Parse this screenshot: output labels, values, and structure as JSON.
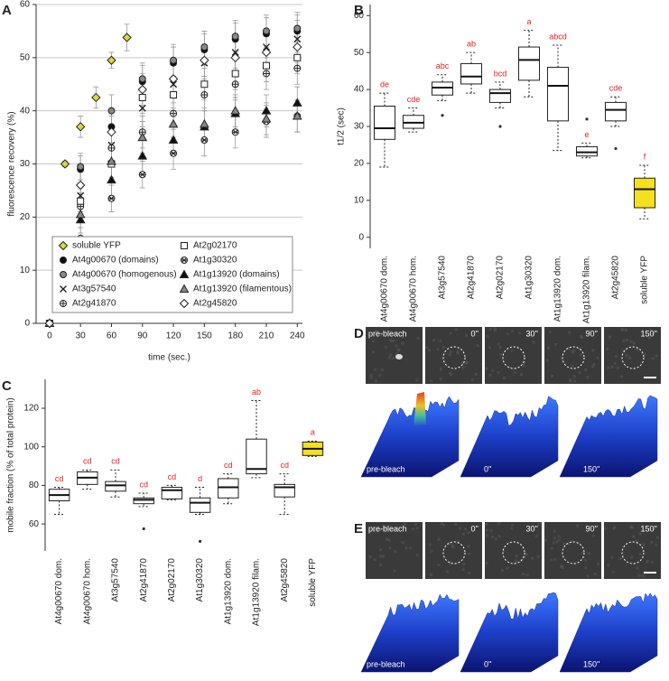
{
  "chart_data": [
    {
      "type": "scatter",
      "panel": "A",
      "xlabel": "time (sec.)",
      "ylabel": "fluorescence recovery (%)",
      "xlim": [
        -13,
        245
      ],
      "ylim": [
        0,
        60
      ],
      "xticks": [
        0,
        30,
        60,
        90,
        120,
        150,
        180,
        210,
        240
      ],
      "yticks": [
        0,
        10,
        20,
        30,
        40,
        50,
        60
      ],
      "grid": true,
      "series": [
        {
          "name": "soluble YFP",
          "color": "#d8d840",
          "marker": "diamond",
          "x": [
            0,
            15,
            30,
            45,
            60,
            75
          ],
          "values": [
            0,
            30,
            37,
            42.5,
            49.5,
            53.8
          ],
          "errors": [
            0.5,
            0.5,
            2,
            2,
            1.5,
            2.5
          ]
        },
        {
          "name": "At4g00670 (domains)",
          "color": "#111111",
          "marker": "circle",
          "x": [
            0,
            30,
            60,
            90,
            120,
            150,
            180,
            210,
            240
          ],
          "values": [
            0,
            29,
            37,
            45.5,
            49,
            51.5,
            53.5,
            54.5,
            55
          ],
          "errors": [
            0.5,
            2.5,
            3,
            3,
            3,
            3,
            3,
            3,
            3
          ]
        },
        {
          "name": "At4g00670 (homogenous)",
          "color": "#888888",
          "marker": "circle",
          "x": [
            0,
            30,
            60,
            90,
            120,
            150,
            180,
            210,
            240
          ],
          "values": [
            0,
            29.5,
            40,
            46,
            49.5,
            52,
            54,
            55,
            55.5
          ],
          "errors": [
            0.5,
            2.5,
            3,
            3,
            3,
            3,
            3,
            3,
            3
          ]
        },
        {
          "name": "At3g57540",
          "color": "#111111",
          "marker": "x",
          "x": [
            0,
            30,
            60,
            90,
            120,
            150,
            180,
            210,
            240
          ],
          "values": [
            0,
            24,
            33.5,
            40.5,
            45,
            49,
            51,
            52,
            53.5
          ],
          "errors": [
            0.5,
            3,
            3,
            3.5,
            3.5,
            3.5,
            3.5,
            3.5,
            3.5
          ]
        },
        {
          "name": "At2g41870",
          "color": "#ffffff",
          "marker": "circle-plus",
          "x": [
            0,
            30,
            60,
            90,
            120,
            150,
            180,
            210,
            240
          ],
          "values": [
            0,
            22,
            33,
            36,
            39.5,
            43,
            45,
            47,
            48
          ],
          "errors": [
            0.5,
            2.5,
            3,
            3,
            3,
            3,
            3,
            3,
            3
          ]
        },
        {
          "name": "At2g02170",
          "color": "#ffffff",
          "marker": "square",
          "x": [
            0,
            30,
            60,
            90,
            120,
            150,
            180,
            210,
            240
          ],
          "values": [
            0,
            23,
            30,
            42.5,
            43,
            45,
            47,
            48.5,
            50
          ],
          "errors": [
            0.5,
            2.5,
            3,
            3,
            3,
            3,
            3,
            3,
            3
          ]
        },
        {
          "name": "At1g30320",
          "color": "#ffffff",
          "marker": "circle-star",
          "x": [
            0,
            30,
            60,
            90,
            120,
            150,
            180,
            210,
            240
          ],
          "values": [
            0,
            16,
            23.5,
            28,
            32,
            34.5,
            36,
            38,
            39
          ],
          "errors": [
            0.5,
            2,
            2.5,
            2.5,
            3,
            3,
            3,
            3,
            3
          ]
        },
        {
          "name": "At1g13920 (domains)",
          "color": "#111111",
          "marker": "triangle",
          "x": [
            0,
            30,
            60,
            90,
            120,
            150,
            180,
            210,
            240
          ],
          "values": [
            0,
            19.5,
            27,
            31.5,
            34.5,
            37,
            39.5,
            40,
            41.5
          ],
          "errors": [
            0.5,
            2.5,
            3,
            3,
            3,
            3,
            3,
            3,
            3
          ]
        },
        {
          "name": "At1g13920 (filamentous)",
          "color": "#888888",
          "marker": "triangle",
          "x": [
            0,
            30,
            60,
            90,
            120,
            150,
            180,
            210,
            240
          ],
          "values": [
            0,
            20.5,
            30.5,
            35,
            37.5,
            37.5,
            40,
            38.5,
            39
          ],
          "errors": [
            0.5,
            2.5,
            3,
            3,
            3,
            3,
            3,
            3,
            3
          ]
        },
        {
          "name": "At2g45820",
          "color": "#ffffff",
          "marker": "diamond",
          "x": [
            0,
            30,
            60,
            90,
            120,
            150,
            180,
            210,
            240
          ],
          "values": [
            0,
            26,
            36,
            44,
            46,
            49.5,
            50,
            51,
            52
          ],
          "errors": [
            0.5,
            2.5,
            3,
            3,
            3,
            3,
            3,
            3,
            3
          ]
        }
      ]
    },
    {
      "type": "box",
      "panel": "B",
      "ylabel": "t1/2 (sec)",
      "ylim": [
        -3,
        63
      ],
      "yticks": [
        0,
        10,
        20,
        30,
        40,
        50,
        60
      ],
      "categories": [
        "At4g00670 dom.",
        "At4g00670 hom.",
        "At3g57540",
        "At2g41870",
        "At2g02170",
        "At1g30320",
        "At1g13920 dom.",
        "At1g13920 filam.",
        "At2g45820",
        "soluble YFP"
      ],
      "colors": [
        "#ffffff",
        "#ffffff",
        "#ffffff",
        "#ffffff",
        "#ffffff",
        "#ffffff",
        "#ffffff",
        "#ffffff",
        "#ffffff",
        "#f5e020"
      ],
      "letters": [
        "de",
        "cde",
        "abc",
        "ab",
        "bcd",
        "a",
        "abcd",
        "e",
        "cde",
        "f"
      ],
      "boxes": [
        {
          "min": 19,
          "q1": 26.5,
          "median": 29.5,
          "q3": 35.5,
          "max": 39,
          "outliers": []
        },
        {
          "min": 28.5,
          "q1": 29.5,
          "median": 31,
          "q3": 33,
          "max": 35,
          "outliers": []
        },
        {
          "min": 37,
          "q1": 38.5,
          "median": 40.5,
          "q3": 42,
          "max": 44,
          "outliers": [
            33
          ]
        },
        {
          "min": 39,
          "q1": 41.5,
          "median": 43.5,
          "q3": 47,
          "max": 50,
          "outliers": []
        },
        {
          "min": 35,
          "q1": 36.5,
          "median": 39,
          "q3": 40,
          "max": 42,
          "outliers": [
            30
          ]
        },
        {
          "min": 38,
          "q1": 42.5,
          "median": 48,
          "q3": 51.5,
          "max": 56,
          "outliers": []
        },
        {
          "min": 23.5,
          "q1": 31.5,
          "median": 41,
          "q3": 46,
          "max": 52,
          "outliers": []
        },
        {
          "min": 21.5,
          "q1": 22,
          "median": 23,
          "q3": 24.5,
          "max": 25.5,
          "outliers": [
            32
          ]
        },
        {
          "min": 30,
          "q1": 31.5,
          "median": 34.5,
          "q3": 36.5,
          "max": 38,
          "outliers": [
            24
          ]
        },
        {
          "min": 5,
          "q1": 8,
          "median": 13,
          "q3": 16,
          "max": 19.5,
          "outliers": []
        }
      ]
    },
    {
      "type": "box",
      "panel": "C",
      "ylabel": "mobile fraction (% of total protein)",
      "ylim": [
        46,
        135
      ],
      "yticks": [
        60,
        80,
        100,
        120
      ],
      "categories": [
        "At4g00670 dom.",
        "At4g00670 hom.",
        "At3g57540",
        "At2g41870",
        "At2g02170",
        "At1g30320",
        "At1g13920 dom.",
        "At1g13920 filam.",
        "At2g45820",
        "soluble YFP"
      ],
      "colors": [
        "#ffffff",
        "#ffffff",
        "#ffffff",
        "#ffffff",
        "#ffffff",
        "#ffffff",
        "#ffffff",
        "#ffffff",
        "#ffffff",
        "#f5e020"
      ],
      "letters": [
        "cd",
        "cd",
        "cd",
        "cd",
        "cd",
        "d",
        "cd",
        "ab",
        "cd",
        "a"
      ],
      "boxes": [
        {
          "min": 65,
          "q1": 72,
          "median": 75,
          "q3": 78,
          "max": 79,
          "outliers": []
        },
        {
          "min": 78,
          "q1": 80.5,
          "median": 84,
          "q3": 87,
          "max": 88,
          "outliers": []
        },
        {
          "min": 74,
          "q1": 77,
          "median": 80,
          "q3": 82,
          "max": 88,
          "outliers": []
        },
        {
          "min": 69,
          "q1": 70.5,
          "median": 72.5,
          "q3": 73.5,
          "max": 76,
          "outliers": [
            57.5
          ]
        },
        {
          "min": 72.5,
          "q1": 73,
          "median": 77.5,
          "q3": 79,
          "max": 80,
          "outliers": []
        },
        {
          "min": 65,
          "q1": 66,
          "median": 71,
          "q3": 73.5,
          "max": 79,
          "outliers": [
            51
          ]
        },
        {
          "min": 70.5,
          "q1": 73.5,
          "median": 79,
          "q3": 83.5,
          "max": 86,
          "outliers": []
        },
        {
          "min": 84,
          "q1": 86,
          "median": 88.5,
          "q3": 104,
          "max": 124,
          "outliers": []
        },
        {
          "min": 65,
          "q1": 74,
          "median": 79,
          "q3": 80.5,
          "max": 86,
          "outliers": []
        },
        {
          "min": 95,
          "q1": 95.5,
          "median": 99,
          "q3": 102.5,
          "max": 103,
          "outliers": []
        }
      ]
    }
  ],
  "images": [
    {
      "panel": "D",
      "frames": [
        "pre-bleach",
        "0''",
        "30''",
        "90''",
        "150''"
      ],
      "surfaces": [
        "pre-bleach",
        "0''",
        "150''"
      ]
    },
    {
      "panel": "E",
      "frames": [
        "pre-bleach",
        "0''",
        "30''",
        "90''",
        "150''"
      ],
      "surfaces": [
        "pre-bleach",
        "0''",
        "150''"
      ]
    }
  ]
}
